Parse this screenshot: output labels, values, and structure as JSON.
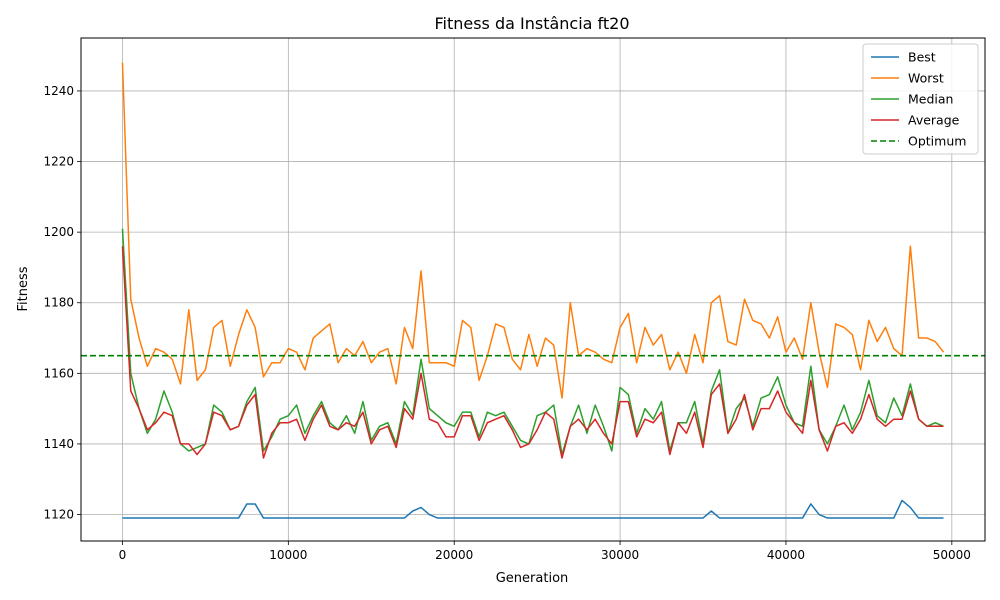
{
  "chart_data": {
    "type": "line",
    "title": "Fitness da Instância ft20",
    "xlabel": "Generation",
    "ylabel": "Fitness",
    "xlim": [
      -2500,
      52000
    ],
    "ylim": [
      1112.5,
      1255
    ],
    "xticks": [
      0,
      10000,
      20000,
      30000,
      40000,
      50000
    ],
    "xtick_labels": [
      "0",
      "10000",
      "20000",
      "30000",
      "40000",
      "50000"
    ],
    "yticks": [
      1120,
      1140,
      1160,
      1180,
      1200,
      1220,
      1240
    ],
    "ytick_labels": [
      "1120",
      "1140",
      "1160",
      "1180",
      "1200",
      "1220",
      "1240"
    ],
    "grid": true,
    "legend_position": "top-right",
    "x": [
      0,
      500,
      1000,
      1500,
      2000,
      2500,
      3000,
      3500,
      4000,
      4500,
      5000,
      5500,
      6000,
      6500,
      7000,
      7500,
      8000,
      8500,
      9000,
      9500,
      10000,
      10500,
      11000,
      11500,
      12000,
      12500,
      13000,
      13500,
      14000,
      14500,
      15000,
      15500,
      16000,
      16500,
      17000,
      17500,
      18000,
      18500,
      19000,
      19500,
      20000,
      20500,
      21000,
      21500,
      22000,
      22500,
      23000,
      23500,
      24000,
      24500,
      25000,
      25500,
      26000,
      26500,
      27000,
      27500,
      28000,
      28500,
      29000,
      29500,
      30000,
      30500,
      31000,
      31500,
      32000,
      32500,
      33000,
      33500,
      34000,
      34500,
      35000,
      35500,
      36000,
      36500,
      37000,
      37500,
      38000,
      38500,
      39000,
      39500,
      40000,
      40500,
      41000,
      41500,
      42000,
      42500,
      43000,
      43500,
      44000,
      44500,
      45000,
      45500,
      46000,
      46500,
      47000,
      47500,
      48000,
      48500,
      49000,
      49500
    ],
    "series": [
      {
        "name": "Best",
        "color": "#1f77b4",
        "dashed": false,
        "values": [
          1119,
          1119,
          1119,
          1119,
          1119,
          1119,
          1119,
          1119,
          1119,
          1119,
          1119,
          1119,
          1119,
          1119,
          1119,
          1123,
          1123,
          1119,
          1119,
          1119,
          1119,
          1119,
          1119,
          1119,
          1119,
          1119,
          1119,
          1119,
          1119,
          1119,
          1119,
          1119,
          1119,
          1119,
          1119,
          1121,
          1122,
          1120,
          1119,
          1119,
          1119,
          1119,
          1119,
          1119,
          1119,
          1119,
          1119,
          1119,
          1119,
          1119,
          1119,
          1119,
          1119,
          1119,
          1119,
          1119,
          1119,
          1119,
          1119,
          1119,
          1119,
          1119,
          1119,
          1119,
          1119,
          1119,
          1119,
          1119,
          1119,
          1119,
          1119,
          1121,
          1119,
          1119,
          1119,
          1119,
          1119,
          1119,
          1119,
          1119,
          1119,
          1119,
          1119,
          1123,
          1120,
          1119,
          1119,
          1119,
          1119,
          1119,
          1119,
          1119,
          1119,
          1119,
          1124,
          1122,
          1119,
          1119,
          1119,
          1119
        ]
      },
      {
        "name": "Worst",
        "color": "#ff7f0e",
        "dashed": false,
        "values": [
          1248,
          1181,
          1170,
          1162,
          1167,
          1166,
          1164,
          1157,
          1178,
          1158,
          1161,
          1173,
          1175,
          1162,
          1171,
          1178,
          1173,
          1159,
          1163,
          1163,
          1167,
          1166,
          1161,
          1170,
          1172,
          1174,
          1163,
          1167,
          1165,
          1169,
          1163,
          1166,
          1167,
          1157,
          1173,
          1167,
          1189,
          1163,
          1163,
          1163,
          1162,
          1175,
          1173,
          1158,
          1165,
          1174,
          1173,
          1164,
          1161,
          1171,
          1162,
          1170,
          1168,
          1153,
          1180,
          1165,
          1167,
          1166,
          1164,
          1163,
          1173,
          1177,
          1163,
          1173,
          1168,
          1171,
          1161,
          1166,
          1160,
          1171,
          1163,
          1180,
          1182,
          1169,
          1168,
          1181,
          1175,
          1174,
          1170,
          1176,
          1166,
          1170,
          1164,
          1180,
          1166,
          1156,
          1174,
          1173,
          1171,
          1161,
          1175,
          1169,
          1173,
          1167,
          1165,
          1196,
          1170,
          1170,
          1169,
          1166
        ]
      },
      {
        "name": "Median",
        "color": "#2ca02c",
        "dashed": false,
        "values": [
          1201,
          1160,
          1150,
          1143,
          1147,
          1155,
          1149,
          1140,
          1138,
          1139,
          1140,
          1151,
          1149,
          1144,
          1145,
          1152,
          1156,
          1138,
          1142,
          1147,
          1148,
          1151,
          1143,
          1148,
          1152,
          1146,
          1144,
          1148,
          1143,
          1152,
          1141,
          1145,
          1146,
          1140,
          1152,
          1148,
          1164,
          1150,
          1148,
          1146,
          1145,
          1149,
          1149,
          1142,
          1149,
          1148,
          1149,
          1145,
          1141,
          1140,
          1148,
          1149,
          1151,
          1137,
          1145,
          1151,
          1143,
          1151,
          1145,
          1138,
          1156,
          1154,
          1143,
          1150,
          1147,
          1152,
          1138,
          1146,
          1146,
          1152,
          1140,
          1155,
          1161,
          1143,
          1150,
          1153,
          1145,
          1153,
          1154,
          1159,
          1151,
          1146,
          1145,
          1162,
          1144,
          1140,
          1145,
          1151,
          1144,
          1149,
          1158,
          1148,
          1146,
          1153,
          1148,
          1157,
          1147,
          1145,
          1146,
          1145
        ]
      },
      {
        "name": "Average",
        "color": "#d62728",
        "dashed": false,
        "values": [
          1196,
          1155,
          1150,
          1144,
          1146,
          1149,
          1148,
          1140,
          1140,
          1137,
          1140,
          1149,
          1148,
          1144,
          1145,
          1151,
          1154,
          1136,
          1143,
          1146,
          1146,
          1147,
          1141,
          1147,
          1151,
          1145,
          1144,
          1146,
          1145,
          1149,
          1140,
          1144,
          1145,
          1139,
          1150,
          1147,
          1160,
          1147,
          1146,
          1142,
          1142,
          1148,
          1148,
          1141,
          1146,
          1147,
          1148,
          1144,
          1139,
          1140,
          1144,
          1149,
          1147,
          1136,
          1145,
          1147,
          1144,
          1147,
          1143,
          1140,
          1152,
          1152,
          1142,
          1147,
          1146,
          1149,
          1137,
          1146,
          1143,
          1149,
          1139,
          1154,
          1157,
          1143,
          1147,
          1154,
          1144,
          1150,
          1150,
          1155,
          1149,
          1146,
          1143,
          1158,
          1144,
          1138,
          1145,
          1146,
          1143,
          1147,
          1154,
          1147,
          1145,
          1147,
          1147,
          1155,
          1147,
          1145,
          1145,
          1145
        ]
      },
      {
        "name": "Optimum",
        "color": "#008000",
        "dashed": true,
        "constant": 1165
      }
    ]
  }
}
